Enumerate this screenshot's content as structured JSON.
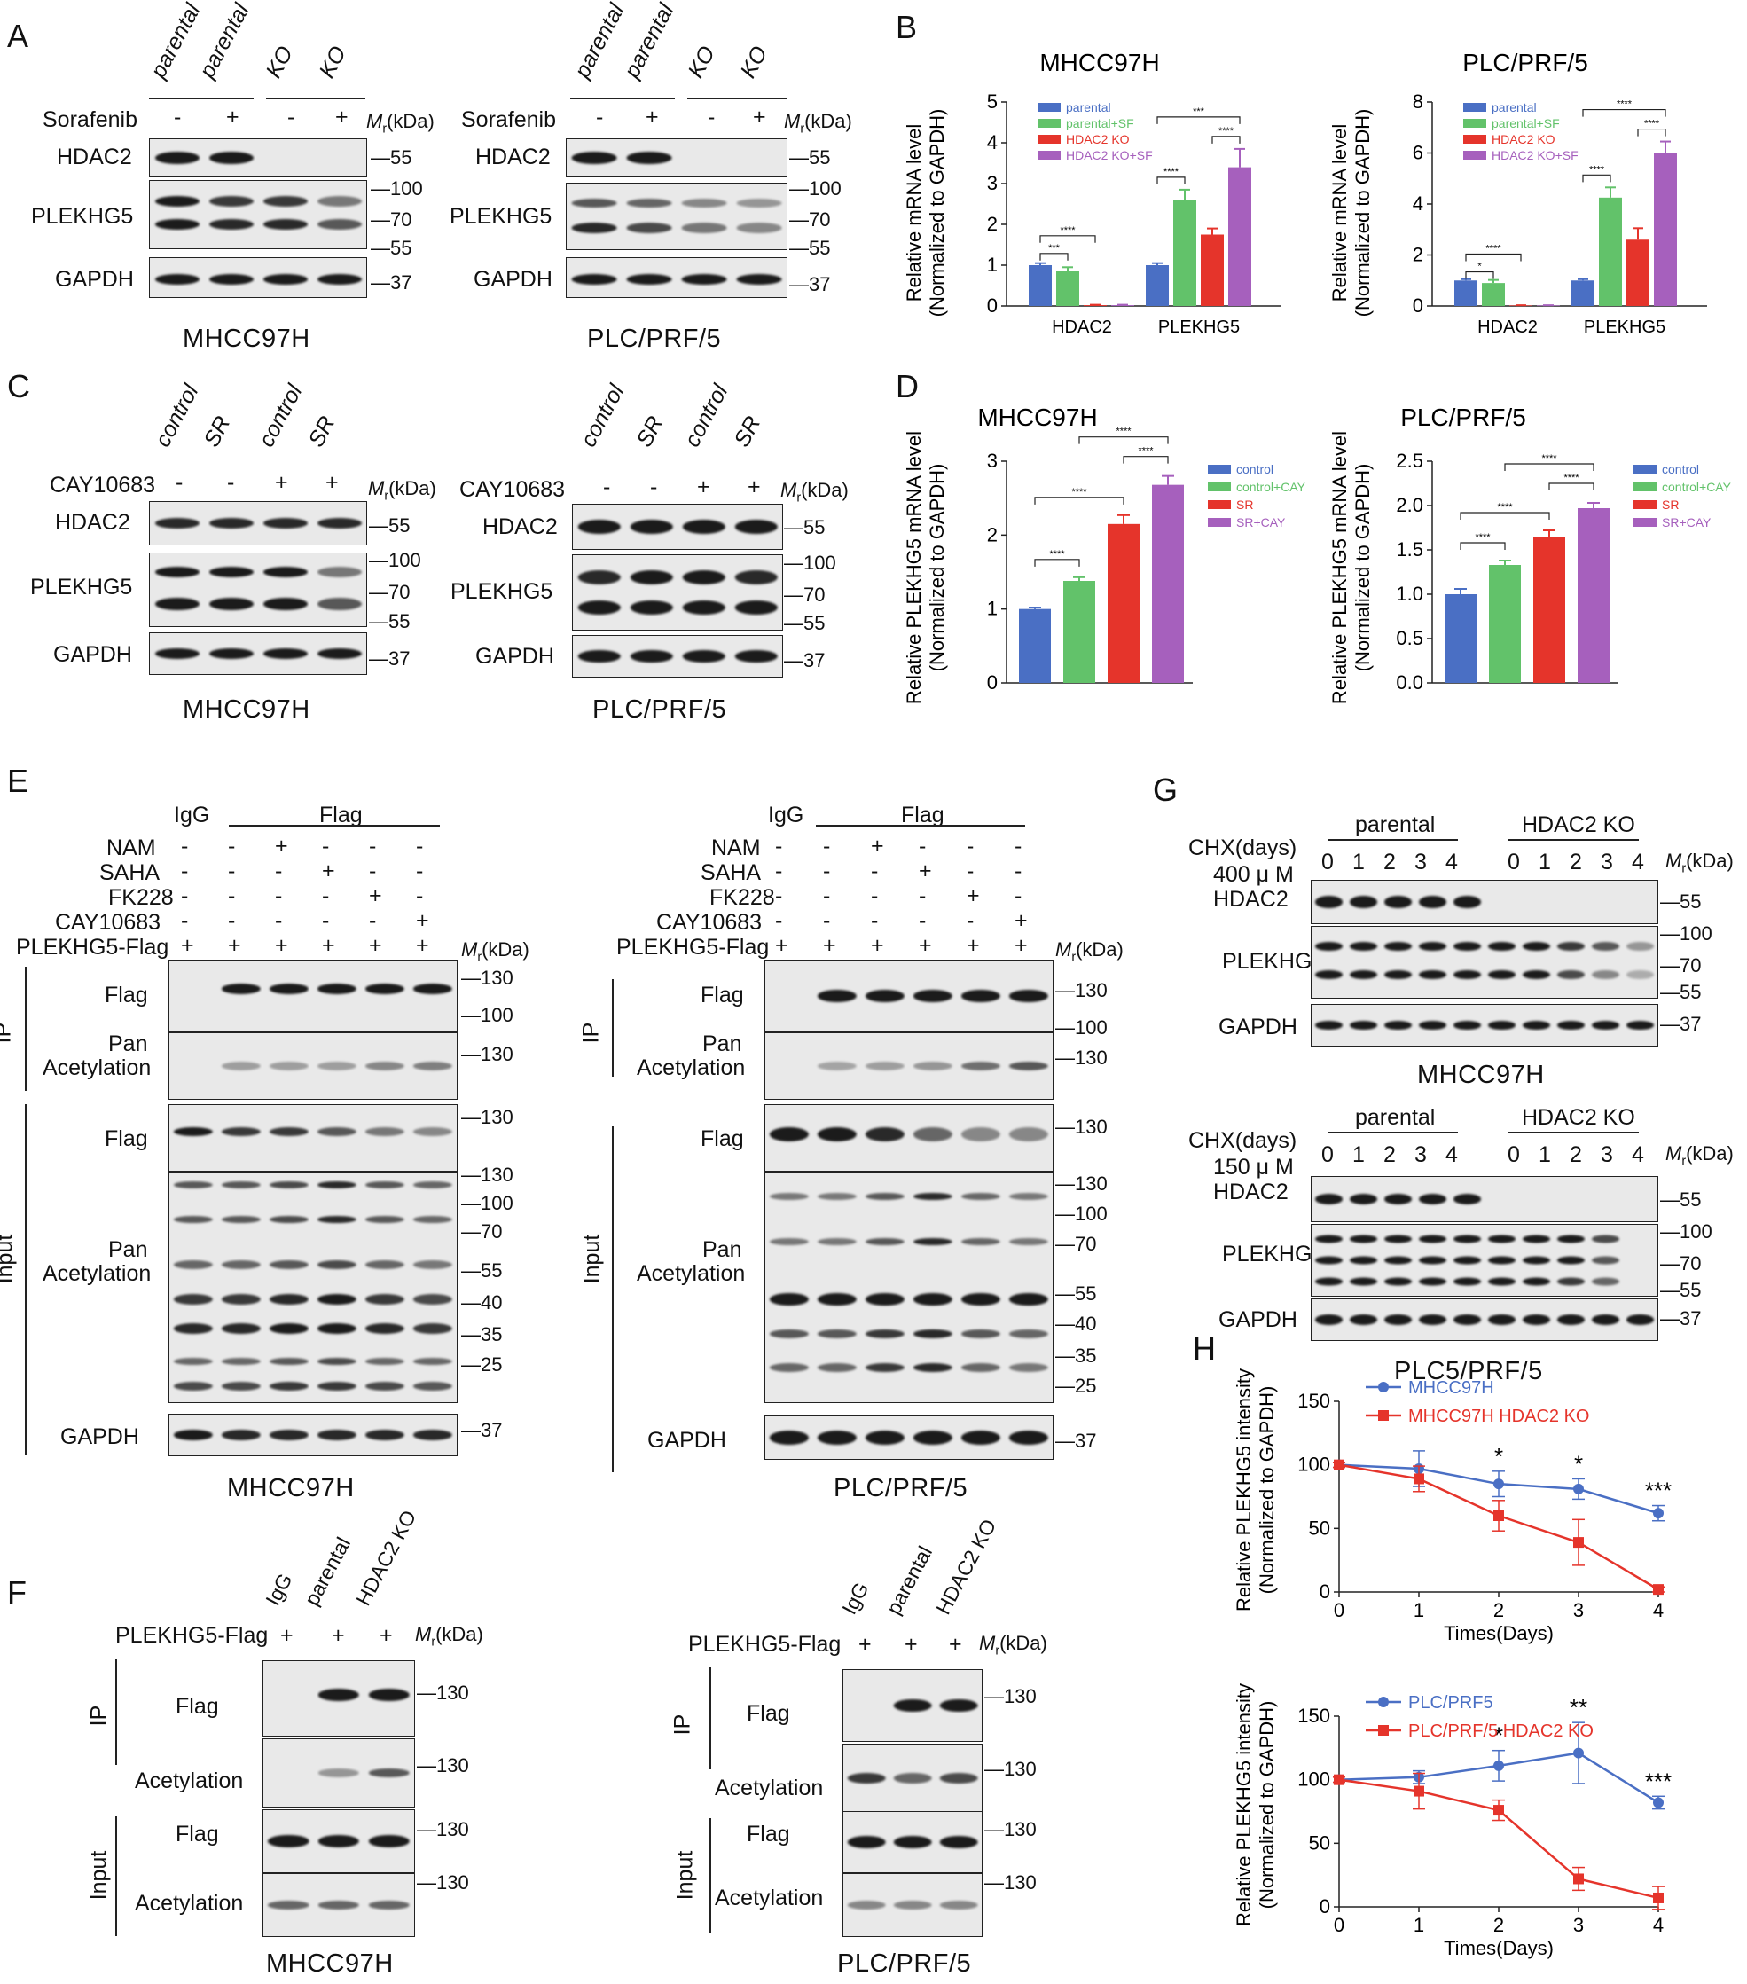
{
  "panel_labels": {
    "a": "A",
    "b": "B",
    "c": "C",
    "d": "D",
    "e": "E",
    "f": "F",
    "g": "G",
    "h": "H"
  },
  "common": {
    "mr": "M",
    "mr_sub": "r",
    "kda": "(kDa)",
    "plus": "+",
    "minus": "-"
  },
  "panel_a": {
    "lanes": [
      "parental",
      "parental",
      "KO",
      "KO"
    ],
    "treatment": "Sorafenib",
    "treat_signs": [
      "-",
      "+",
      "-",
      "+"
    ],
    "rows": [
      "HDAC2",
      "PLEKHG5",
      "GAPDH"
    ],
    "markers": [
      "55",
      "100",
      "70",
      "55",
      "37"
    ],
    "left_title": "MHCC97H",
    "right_title": "PLC/PRF/5"
  },
  "panel_b": {
    "legend": [
      "parental",
      "parental+SF",
      "HDAC2 KO",
      "HDAC2 KO+SF"
    ],
    "ylabel1": "Relative mRNA level",
    "ylabel2": "(Normalized to GAPDH)"
  },
  "panel_c": {
    "lanes": [
      "control",
      "SR",
      "control",
      "SR"
    ],
    "treatment": "CAY10683",
    "treat_signs": [
      "-",
      "-",
      "+",
      "+"
    ],
    "rows": [
      "HDAC2",
      "PLEKHG5",
      "GAPDH"
    ],
    "markers": [
      "55",
      "100",
      "70",
      "55",
      "37"
    ],
    "left_title": "MHCC97H",
    "right_title": "PLC/PRF/5"
  },
  "panel_d": {
    "legend": [
      "control",
      "control+CAY",
      "SR",
      "SR+CAY"
    ],
    "ylabel1": "Relative PLEKHG5 mRNA level",
    "ylabel2": "(Normalized to GAPDH)"
  },
  "panel_e": {
    "igg": "IgG",
    "flag": "Flag",
    "treat_rows": [
      "NAM",
      "SAHA",
      "FK228",
      "CAY10683",
      "PLEKHG5-Flag"
    ],
    "signs": [
      [
        "-",
        "-",
        "+",
        "-",
        "-",
        "-"
      ],
      [
        "-",
        "-",
        "-",
        "+",
        "-",
        "-"
      ],
      [
        "-",
        "-",
        "-",
        "-",
        "+",
        "-"
      ],
      [
        "-",
        "-",
        "-",
        "-",
        "-",
        "+"
      ],
      [
        "+",
        "+",
        "+",
        "+",
        "+",
        "+"
      ]
    ],
    "ip": "IP",
    "input": "Input",
    "row_flag": "Flag",
    "row_pan1": "Pan",
    "row_pan2": "Acetylation",
    "row_gapdh": "GAPDH",
    "markers_ip": [
      "130",
      "100",
      "130"
    ],
    "markers_input": [
      "130",
      "130",
      "100",
      "70",
      "55",
      "40",
      "35",
      "25",
      "37"
    ],
    "left_title": "MHCC97H",
    "right_title": "PLC/PRF/5"
  },
  "panel_f": {
    "lanes": [
      "IgG",
      "parental",
      "HDAC2 KO"
    ],
    "construct": "PLEKHG5-Flag",
    "signs": [
      "+",
      "+",
      "+"
    ],
    "ip": "IP",
    "input": "Input",
    "rows": [
      "Flag",
      "Acetylation",
      "Flag",
      "Acetylation"
    ],
    "markers": [
      "130",
      "130",
      "130",
      "130"
    ],
    "left_title": "MHCC97H",
    "right_title": "PLC/PRF/5"
  },
  "panel_g": {
    "group1": "parental",
    "group2": "HDAC2 KO",
    "chx": "CHX(days)",
    "dose_top": "400 μ M",
    "dose_bottom": "150 μ M",
    "days": [
      "0",
      "1",
      "2",
      "3",
      "4",
      "0",
      "1",
      "2",
      "3",
      "4"
    ],
    "rows": [
      "HDAC2",
      "PLEKHG5",
      "GAPDH"
    ],
    "markers": [
      "55",
      "100",
      "70",
      "55",
      "37"
    ],
    "top_title": "MHCC97H",
    "bottom_title": "PLC5/PRF/5"
  },
  "colors": {
    "blue": "#4a6fc4",
    "green": "#62c26a",
    "red": "#e5342b",
    "purple": "#a660bd",
    "line_blue": "#4a6fc4",
    "line_red": "#e5342b"
  },
  "chart_data": [
    {
      "id": "b1",
      "type": "bar",
      "title": "MHCC97H",
      "categories": [
        "HDAC2",
        "PLEKHG5"
      ],
      "series": [
        {
          "name": "parental",
          "values": [
            1.0,
            1.0
          ],
          "err": [
            0.05,
            0.05
          ]
        },
        {
          "name": "parental+SF",
          "values": [
            0.85,
            2.6
          ],
          "err": [
            0.1,
            0.25
          ]
        },
        {
          "name": "HDAC2 KO",
          "values": [
            0.02,
            1.75
          ],
          "err": [
            0.01,
            0.15
          ]
        },
        {
          "name": "HDAC2 KO+SF",
          "values": [
            0.02,
            3.4
          ],
          "err": [
            0.01,
            0.45
          ]
        }
      ],
      "ylim": [
        0,
        5
      ],
      "yticks": [
        "0",
        "1",
        "2",
        "3",
        "4",
        "5"
      ],
      "sig": [
        "***",
        "****",
        "****",
        "****",
        "***"
      ]
    },
    {
      "id": "b2",
      "type": "bar",
      "title": "PLC/PRF/5",
      "categories": [
        "HDAC2",
        "PLEKHG5"
      ],
      "series": [
        {
          "name": "parental",
          "values": [
            1.0,
            1.0
          ],
          "err": [
            0.05,
            0.05
          ]
        },
        {
          "name": "parental+SF",
          "values": [
            0.9,
            4.25
          ],
          "err": [
            0.12,
            0.4
          ]
        },
        {
          "name": "HDAC2 KO",
          "values": [
            0.02,
            2.6
          ],
          "err": [
            0.01,
            0.45
          ]
        },
        {
          "name": "HDAC2 KO+SF",
          "values": [
            0.02,
            6.0
          ],
          "err": [
            0.01,
            0.45
          ]
        }
      ],
      "ylim": [
        0,
        8
      ],
      "yticks": [
        "0",
        "2",
        "4",
        "6",
        "8"
      ],
      "sig": [
        "*",
        "****",
        "****",
        "****",
        "****"
      ]
    },
    {
      "id": "d1",
      "type": "bar",
      "title": "MHCC97H",
      "categories": [
        "control",
        "control+CAY",
        "SR",
        "SR+CAY"
      ],
      "values": [
        1.0,
        1.38,
        2.15,
        2.68
      ],
      "err": [
        0.02,
        0.05,
        0.12,
        0.12
      ],
      "ylim": [
        0,
        3
      ],
      "yticks": [
        "0",
        "1",
        "2",
        "3"
      ],
      "sig": [
        "****",
        "****",
        "****",
        "****"
      ]
    },
    {
      "id": "d2",
      "type": "bar",
      "title": "PLC/PRF/5",
      "categories": [
        "control",
        "control+CAY",
        "SR",
        "SR+CAY"
      ],
      "values": [
        1.0,
        1.33,
        1.65,
        1.97
      ],
      "err": [
        0.06,
        0.05,
        0.07,
        0.06
      ],
      "ylim": [
        0,
        2.5
      ],
      "yticks": [
        "0.0",
        "0.5",
        "1.0",
        "1.5",
        "2.0",
        "2.5"
      ],
      "sig": [
        "****",
        "****",
        "****",
        "****"
      ]
    },
    {
      "id": "h1",
      "type": "line",
      "xlabel": "Times(Days)",
      "ylabel1": "Relative PLEKHG5 intensity",
      "ylabel2": "(Normalized to GAPDH)",
      "x": [
        0,
        1,
        2,
        3,
        4
      ],
      "series": [
        {
          "name": "MHCC97H",
          "values": [
            100,
            97,
            85,
            81,
            62
          ],
          "err": [
            2,
            14,
            10,
            8,
            6
          ]
        },
        {
          "name": "MHCC97H HDAC2 KO",
          "values": [
            100,
            89,
            60,
            39,
            2
          ],
          "err": [
            2,
            10,
            12,
            18,
            2
          ]
        }
      ],
      "ylim": [
        0,
        150
      ],
      "yticks": [
        "0",
        "50",
        "100",
        "150"
      ],
      "xticks": [
        "0",
        "1",
        "2",
        "3",
        "4"
      ],
      "stars": [
        "",
        "",
        "*",
        "*",
        "***"
      ]
    },
    {
      "id": "h2",
      "type": "line",
      "xlabel": "Times(Days)",
      "ylabel1": "Relative PLEKHG5 intensity",
      "ylabel2": "(Normalized to GAPDH)",
      "x": [
        0,
        1,
        2,
        3,
        4
      ],
      "series": [
        {
          "name": "PLC/PRF5",
          "values": [
            100,
            102,
            111,
            121,
            82
          ],
          "err": [
            2,
            5,
            12,
            24,
            5
          ]
        },
        {
          "name": "PLC/PRF/5 HDAC2 KO",
          "values": [
            100,
            91,
            76,
            22,
            7
          ],
          "err": [
            2,
            14,
            8,
            9,
            9
          ]
        }
      ],
      "ylim": [
        0,
        150
      ],
      "yticks": [
        "0",
        "50",
        "100",
        "150"
      ],
      "xticks": [
        "0",
        "1",
        "2",
        "3",
        "4"
      ],
      "stars": [
        "",
        "",
        "*",
        "**",
        "***"
      ]
    }
  ]
}
